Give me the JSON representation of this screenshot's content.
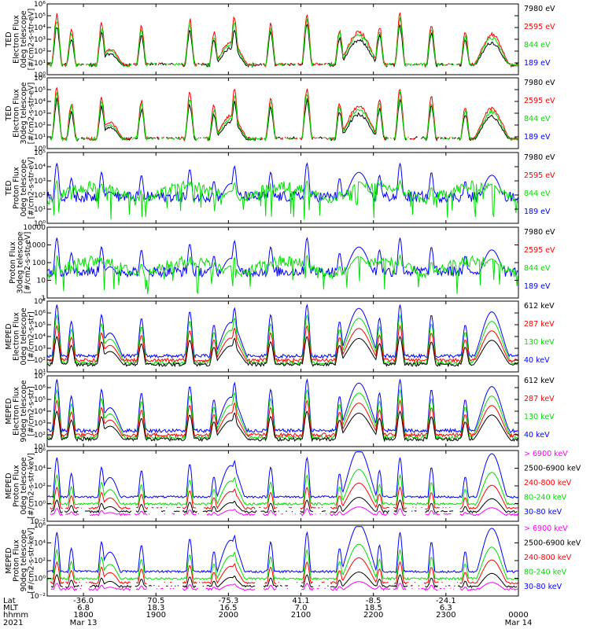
{
  "figure": {
    "colors": {
      "black": "#000000",
      "red": "#ff0000",
      "green": "#00e000",
      "blue": "#0000ff",
      "magenta": "#ff00ff"
    }
  },
  "chart_data": [
    {
      "type": "line",
      "ylabel_lines": [
        "TED",
        "Electron Flux",
        "0deg telescope",
        "[#/cm2-s-str-eV]"
      ],
      "ylim": [
        1,
        1000000
      ],
      "yscale": "log",
      "ytick_labels": [
        "10⁰",
        "10¹",
        "10²",
        "10³",
        "10⁴",
        "10⁵",
        "10⁶"
      ],
      "legend": [
        {
          "label": "7980 eV",
          "color": "black"
        },
        {
          "label": "2595 eV",
          "color": "red"
        },
        {
          "label": "844 eV",
          "color": "green"
        },
        {
          "label": "189 eV",
          "color": "blue"
        }
      ],
      "profile": "electron_ted",
      "series": [
        {
          "name": "7980 eV",
          "color": "black"
        },
        {
          "name": "2595 eV",
          "color": "red"
        },
        {
          "name": "844 eV",
          "color": "green"
        }
      ]
    },
    {
      "type": "line",
      "ylabel_lines": [
        "TED",
        "Electron Flux",
        "30deg telescope",
        "[#/cm2-s-str-eV]"
      ],
      "ylim": [
        1,
        1000000
      ],
      "yscale": "log",
      "ytick_labels": [
        "10⁰",
        "10¹",
        "10²",
        "10³",
        "10⁴",
        "10⁵",
        "10⁶"
      ],
      "legend": [
        {
          "label": "7980 eV",
          "color": "black"
        },
        {
          "label": "2595 eV",
          "color": "red"
        },
        {
          "label": "844 eV",
          "color": "green"
        },
        {
          "label": "189 eV",
          "color": "blue"
        }
      ],
      "profile": "electron_ted",
      "series": [
        {
          "name": "7980 eV",
          "color": "black"
        },
        {
          "name": "2595 eV",
          "color": "red"
        },
        {
          "name": "844 eV",
          "color": "green"
        }
      ]
    },
    {
      "type": "line",
      "ylabel_lines": [
        "TED",
        "Proton Flux",
        "0deg telescope",
        "[#/cm2-s-str-eV]"
      ],
      "ylim": [
        1,
        100000
      ],
      "yscale": "log",
      "ytick_labels": [
        "10⁰",
        "10¹",
        "10²",
        "10³",
        "10⁴",
        "10⁵"
      ],
      "legend": [
        {
          "label": "7980 eV",
          "color": "black"
        },
        {
          "label": "2595 eV",
          "color": "red"
        },
        {
          "label": "844 eV",
          "color": "green"
        },
        {
          "label": "189 eV",
          "color": "blue"
        }
      ],
      "profile": "proton_ted",
      "series": [
        {
          "name": "189 eV",
          "color": "blue"
        },
        {
          "name": "844 eV",
          "color": "green"
        }
      ]
    },
    {
      "type": "line",
      "ylabel_lines": [
        "Proton Flux",
        "30deg telescope",
        "[#/cm2-s-str-eV]"
      ],
      "ylim": [
        1,
        10000
      ],
      "yscale": "log",
      "ytick_labels": [
        "1",
        "10",
        "100",
        "1000",
        "10000"
      ],
      "legend": [
        {
          "label": "7980 eV",
          "color": "black"
        },
        {
          "label": "2595 eV",
          "color": "red"
        },
        {
          "label": "844 eV",
          "color": "green"
        },
        {
          "label": "189 eV",
          "color": "blue"
        }
      ],
      "profile": "proton_ted",
      "series": [
        {
          "name": "189 eV",
          "color": "blue"
        },
        {
          "name": "844 eV",
          "color": "green"
        }
      ]
    },
    {
      "type": "line",
      "ylabel_lines": [
        "MEPED",
        "Electron Flux",
        "0deg telescope",
        "[#/cm2-s-str]"
      ],
      "ylim": [
        10,
        10000000
      ],
      "yscale": "log",
      "ytick_labels": [
        "10¹",
        "10²",
        "10³",
        "10⁴",
        "10⁵",
        "10⁶",
        "10⁷"
      ],
      "legend": [
        {
          "label": "612 keV",
          "color": "black"
        },
        {
          "label": "287 keV",
          "color": "red"
        },
        {
          "label": "130 keV",
          "color": "green"
        },
        {
          "label": "40 keV",
          "color": "blue"
        }
      ],
      "profile": "meped_electron",
      "series": [
        {
          "name": "40 keV",
          "color": "blue"
        },
        {
          "name": "130 keV",
          "color": "green"
        },
        {
          "name": "287 keV",
          "color": "red"
        },
        {
          "name": "612 keV",
          "color": "black"
        }
      ]
    },
    {
      "type": "line",
      "ylabel_lines": [
        "MEPED",
        "Electron Flux",
        "90deg telescope",
        "[#/cm2-s-str]"
      ],
      "ylim": [
        10,
        10000000
      ],
      "yscale": "log",
      "ytick_labels": [
        "10¹",
        "10²",
        "10³",
        "10⁴",
        "10⁵",
        "10⁶",
        "10⁷"
      ],
      "legend": [
        {
          "label": "612 keV",
          "color": "black"
        },
        {
          "label": "287 keV",
          "color": "red"
        },
        {
          "label": "130 keV",
          "color": "green"
        },
        {
          "label": "40 keV",
          "color": "blue"
        }
      ],
      "profile": "meped_electron",
      "series": [
        {
          "name": "40 keV",
          "color": "blue"
        },
        {
          "name": "130 keV",
          "color": "green"
        },
        {
          "name": "287 keV",
          "color": "red"
        },
        {
          "name": "612 keV",
          "color": "black"
        }
      ]
    },
    {
      "type": "line",
      "ylabel_lines": [
        "MEPED",
        "Proton Flux",
        "0deg telescope",
        "[#/cm2-s-str-keV]"
      ],
      "ylim": [
        0.01,
        1000000
      ],
      "yscale": "log",
      "ytick_labels": [
        "10⁻²",
        "10⁰",
        "10²",
        "10⁴",
        "10⁶"
      ],
      "legend": [
        {
          "label": "> 6900 keV",
          "color": "magenta"
        },
        {
          "label": "2500-6900 keV",
          "color": "black"
        },
        {
          "label": "240-800 keV",
          "color": "red"
        },
        {
          "label": "80-240 keV",
          "color": "green"
        },
        {
          "label": "30-80 keV",
          "color": "blue"
        }
      ],
      "profile": "meped_proton",
      "series": [
        {
          "name": "30-80 keV",
          "color": "blue"
        },
        {
          "name": "80-240 keV",
          "color": "green"
        },
        {
          "name": "240-800 keV",
          "color": "red"
        },
        {
          "name": "2500-6900 keV",
          "color": "black"
        },
        {
          "name": "> 6900 keV",
          "color": "magenta"
        }
      ]
    },
    {
      "type": "line",
      "ylabel_lines": [
        "MEPED",
        "Proton Flux",
        "90deg telescope",
        "[#/cm2-s-str-keV]"
      ],
      "ylim": [
        0.01,
        1000000
      ],
      "yscale": "log",
      "ytick_labels": [
        "10⁻²",
        "10⁰",
        "10²",
        "10⁴",
        "10⁶"
      ],
      "legend": [
        {
          "label": "> 6900 keV",
          "color": "magenta"
        },
        {
          "label": "2500-6900 keV",
          "color": "black"
        },
        {
          "label": "240-800 keV",
          "color": "red"
        },
        {
          "label": "80-240 keV",
          "color": "green"
        },
        {
          "label": "30-80 keV",
          "color": "blue"
        }
      ],
      "profile": "meped_proton",
      "series": [
        {
          "name": "30-80 keV",
          "color": "blue"
        },
        {
          "name": "80-240 keV",
          "color": "green"
        },
        {
          "name": "240-800 keV",
          "color": "red"
        },
        {
          "name": "2500-6900 keV",
          "color": "black"
        },
        {
          "name": "> 6900 keV",
          "color": "magenta"
        }
      ]
    }
  ],
  "footer": {
    "row_labels": [
      "Lat",
      "MLT",
      "hhmm",
      "2021"
    ],
    "time_range": [
      "2021-03-13 17:30",
      "2021-03-14 00:00"
    ],
    "columns": [
      {
        "lat": "-36.0",
        "mlt": "6.8",
        "hhmm": "1800",
        "date": "Mar 13"
      },
      {
        "lat": "70.5",
        "mlt": "18.3",
        "hhmm": "1900",
        "date": ""
      },
      {
        "lat": "-75.3",
        "mlt": "16.5",
        "hhmm": "2000",
        "date": ""
      },
      {
        "lat": "41.1",
        "mlt": "7.0",
        "hhmm": "2100",
        "date": ""
      },
      {
        "lat": "-8.5",
        "mlt": "18.5",
        "hhmm": "2200",
        "date": ""
      },
      {
        "lat": "-24.1",
        "mlt": "6.3",
        "hhmm": "2300",
        "date": ""
      },
      {
        "lat": "",
        "mlt": "",
        "hhmm": "0000",
        "date": "Mar 14"
      }
    ]
  }
}
